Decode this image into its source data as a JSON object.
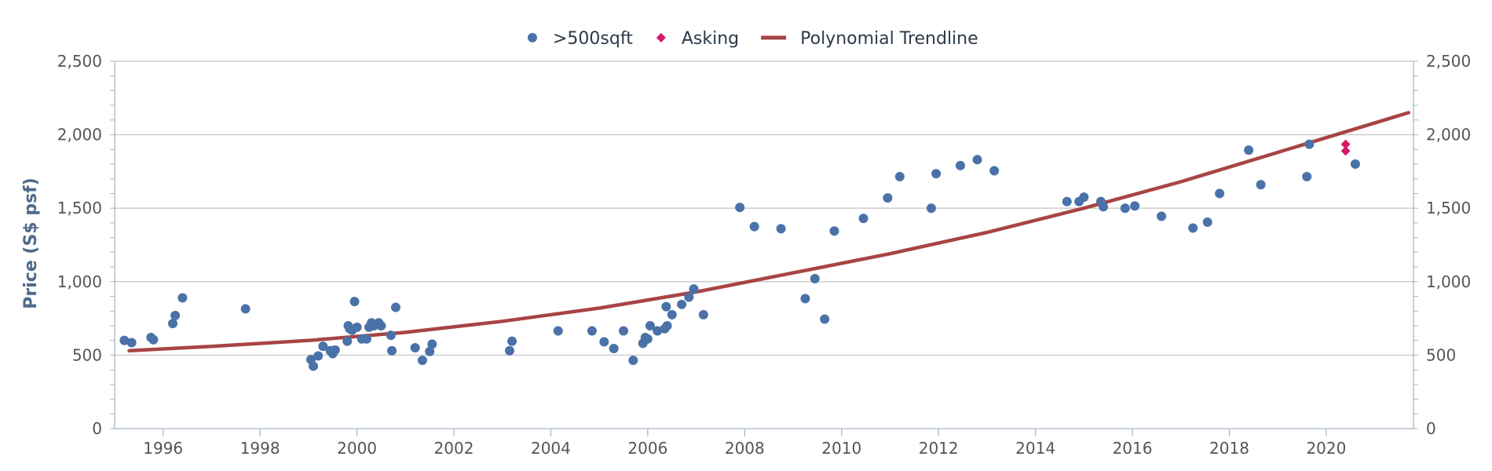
{
  "chart_data": {
    "type": "scatter",
    "ylabel": "Price (S$ psf)",
    "ylim": [
      0,
      2500
    ],
    "xlim": [
      1995.0,
      2021.8
    ],
    "y_ticks": [
      0,
      500,
      1000,
      1500,
      2000,
      2500
    ],
    "y_tick_labels": [
      "0",
      "500",
      "1,000",
      "1,500",
      "2,000",
      "2,500"
    ],
    "x_ticks": [
      1996,
      1998,
      2000,
      2002,
      2004,
      2006,
      2008,
      2010,
      2012,
      2014,
      2016,
      2018,
      2020
    ],
    "x_tick_labels": [
      "1996",
      "1998",
      "2000",
      "2002",
      "2004",
      "2006",
      "2008",
      "2010",
      "2012",
      "2014",
      "2016",
      "2018",
      "2020"
    ],
    "grid": true,
    "secondary_y_axis": true,
    "legend_position": "top-center",
    "legend": [
      {
        "name": ">500sqft",
        "marker": "circle",
        "color": "#4a72a8"
      },
      {
        "name": "Asking",
        "marker": "diamond",
        "color": "#d6186a"
      },
      {
        "name": "Polynomial Trendline",
        "marker": "line",
        "color": "#a84444"
      }
    ],
    "series": [
      {
        "name": ">500sqft",
        "type": "scatter",
        "color": "#4a72a8",
        "points": [
          [
            1995.2,
            600
          ],
          [
            1995.35,
            585
          ],
          [
            1995.75,
            620
          ],
          [
            1995.8,
            605
          ],
          [
            1996.2,
            715
          ],
          [
            1996.25,
            770
          ],
          [
            1996.4,
            890
          ],
          [
            1997.7,
            815
          ],
          [
            1999.05,
            470
          ],
          [
            1999.1,
            425
          ],
          [
            1999.2,
            495
          ],
          [
            1999.3,
            560
          ],
          [
            1999.45,
            530
          ],
          [
            1999.5,
            510
          ],
          [
            1999.55,
            535
          ],
          [
            1999.8,
            595
          ],
          [
            1999.82,
            700
          ],
          [
            1999.85,
            680
          ],
          [
            1999.9,
            670
          ],
          [
            1999.95,
            865
          ],
          [
            2000.0,
            690
          ],
          [
            2000.1,
            610
          ],
          [
            2000.2,
            610
          ],
          [
            2000.25,
            690
          ],
          [
            2000.3,
            720
          ],
          [
            2000.35,
            700
          ],
          [
            2000.45,
            720
          ],
          [
            2000.5,
            700
          ],
          [
            2000.7,
            635
          ],
          [
            2000.72,
            530
          ],
          [
            2000.8,
            825
          ],
          [
            2001.2,
            550
          ],
          [
            2001.35,
            465
          ],
          [
            2001.5,
            525
          ],
          [
            2001.55,
            575
          ],
          [
            2003.15,
            530
          ],
          [
            2003.2,
            595
          ],
          [
            2004.15,
            665
          ],
          [
            2004.85,
            665
          ],
          [
            2005.1,
            590
          ],
          [
            2005.3,
            545
          ],
          [
            2005.5,
            665
          ],
          [
            2005.7,
            465
          ],
          [
            2005.9,
            580
          ],
          [
            2005.95,
            620
          ],
          [
            2006.0,
            610
          ],
          [
            2006.05,
            700
          ],
          [
            2006.2,
            665
          ],
          [
            2006.35,
            680
          ],
          [
            2006.38,
            830
          ],
          [
            2006.4,
            700
          ],
          [
            2006.5,
            775
          ],
          [
            2006.7,
            845
          ],
          [
            2006.85,
            895
          ],
          [
            2006.95,
            950
          ],
          [
            2007.15,
            775
          ],
          [
            2007.9,
            1505
          ],
          [
            2008.2,
            1375
          ],
          [
            2008.75,
            1360
          ],
          [
            2009.25,
            885
          ],
          [
            2009.45,
            1020
          ],
          [
            2009.65,
            745
          ],
          [
            2009.85,
            1345
          ],
          [
            2010.45,
            1430
          ],
          [
            2010.95,
            1570
          ],
          [
            2011.2,
            1715
          ],
          [
            2011.85,
            1500
          ],
          [
            2011.95,
            1735
          ],
          [
            2012.45,
            1790
          ],
          [
            2012.8,
            1830
          ],
          [
            2013.15,
            1755
          ],
          [
            2014.65,
            1545
          ],
          [
            2014.9,
            1545
          ],
          [
            2015.0,
            1575
          ],
          [
            2015.35,
            1545
          ],
          [
            2015.4,
            1510
          ],
          [
            2015.85,
            1500
          ],
          [
            2016.05,
            1515
          ],
          [
            2016.6,
            1445
          ],
          [
            2017.25,
            1365
          ],
          [
            2017.55,
            1405
          ],
          [
            2017.8,
            1600
          ],
          [
            2018.4,
            1895
          ],
          [
            2018.65,
            1660
          ],
          [
            2019.6,
            1715
          ],
          [
            2019.65,
            1935
          ],
          [
            2020.6,
            1800
          ]
        ]
      },
      {
        "name": "Asking",
        "type": "scatter",
        "color": "#d6186a",
        "points": [
          [
            2020.4,
            1935
          ],
          [
            2020.4,
            1890
          ]
        ]
      },
      {
        "name": "Polynomial Trendline",
        "type": "line",
        "color": "#a84444",
        "points": [
          [
            1995.3,
            530
          ],
          [
            1997.0,
            560
          ],
          [
            1999.0,
            600
          ],
          [
            2001.0,
            655
          ],
          [
            2003.0,
            730
          ],
          [
            2005.0,
            820
          ],
          [
            2007.0,
            930
          ],
          [
            2009.0,
            1060
          ],
          [
            2011.0,
            1190
          ],
          [
            2013.0,
            1335
          ],
          [
            2015.0,
            1500
          ],
          [
            2017.0,
            1680
          ],
          [
            2019.0,
            1880
          ],
          [
            2021.7,
            2150
          ]
        ]
      }
    ]
  }
}
